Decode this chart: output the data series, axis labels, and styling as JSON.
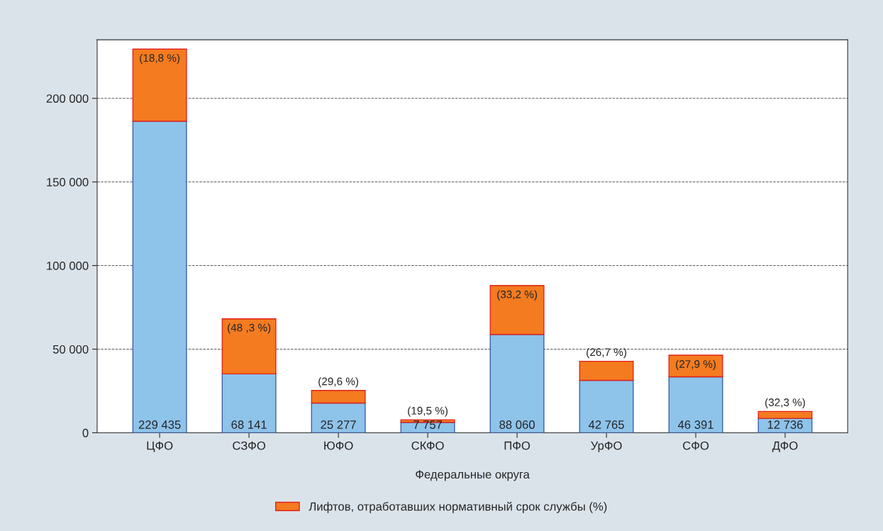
{
  "chart_data": {
    "type": "bar",
    "stacked": true,
    "categories": [
      "ЦФО",
      "СЗФО",
      "ЮФО",
      "СКФО",
      "ПФО",
      "УрФО",
      "СФО",
      "ДФО"
    ],
    "series": [
      {
        "color": "#8ec3ea",
        "values": [
          186301,
          35229,
          17795,
          6244,
          58824,
          31347,
          33448,
          8622
        ]
      },
      {
        "name": "Лифтов, отработавших нормативный срок службы (%)",
        "color": "#f47b20",
        "values": [
          43134,
          32912,
          7482,
          1513,
          29236,
          11418,
          12943,
          4114
        ]
      }
    ],
    "annotations": [
      {
        "text": "(18,8 %)",
        "x": "ЦФО",
        "y": 229435
      },
      {
        "text": "(48 ,3 %)",
        "x": "СЗФО",
        "y": 68141
      },
      {
        "text": "(29,6 %)",
        "x": "ЮФО",
        "y": 25277
      },
      {
        "text": "(19,5 %)",
        "x": "СКФО",
        "y": 7757
      },
      {
        "text": "(33,2 %)",
        "x": "ПФО",
        "y": 88060
      },
      {
        "text": "(26,7 %)",
        "x": "УрФО",
        "y": 42765
      },
      {
        "text": "(27,9 %)",
        "x": "СФО",
        "y": 46391
      },
      {
        "text": "(32,3 %)",
        "x": "ДФО",
        "y": 12736
      }
    ],
    "totals": [
      "229 435",
      "68 141",
      "25 277",
      "7 757",
      "88 060",
      "42 765",
      "46 391",
      "12 736"
    ],
    "xlabel": "Федеральные округа",
    "ylim": [
      0,
      235000
    ],
    "yticks": [
      {
        "value": 0,
        "label": "0"
      },
      {
        "value": 50000,
        "label": "50 000"
      },
      {
        "value": 100000,
        "label": "100 000"
      },
      {
        "value": 150000,
        "label": "150 000"
      },
      {
        "value": 200000,
        "label": "200 000"
      }
    ],
    "grid": "y",
    "legend": "bottom"
  }
}
